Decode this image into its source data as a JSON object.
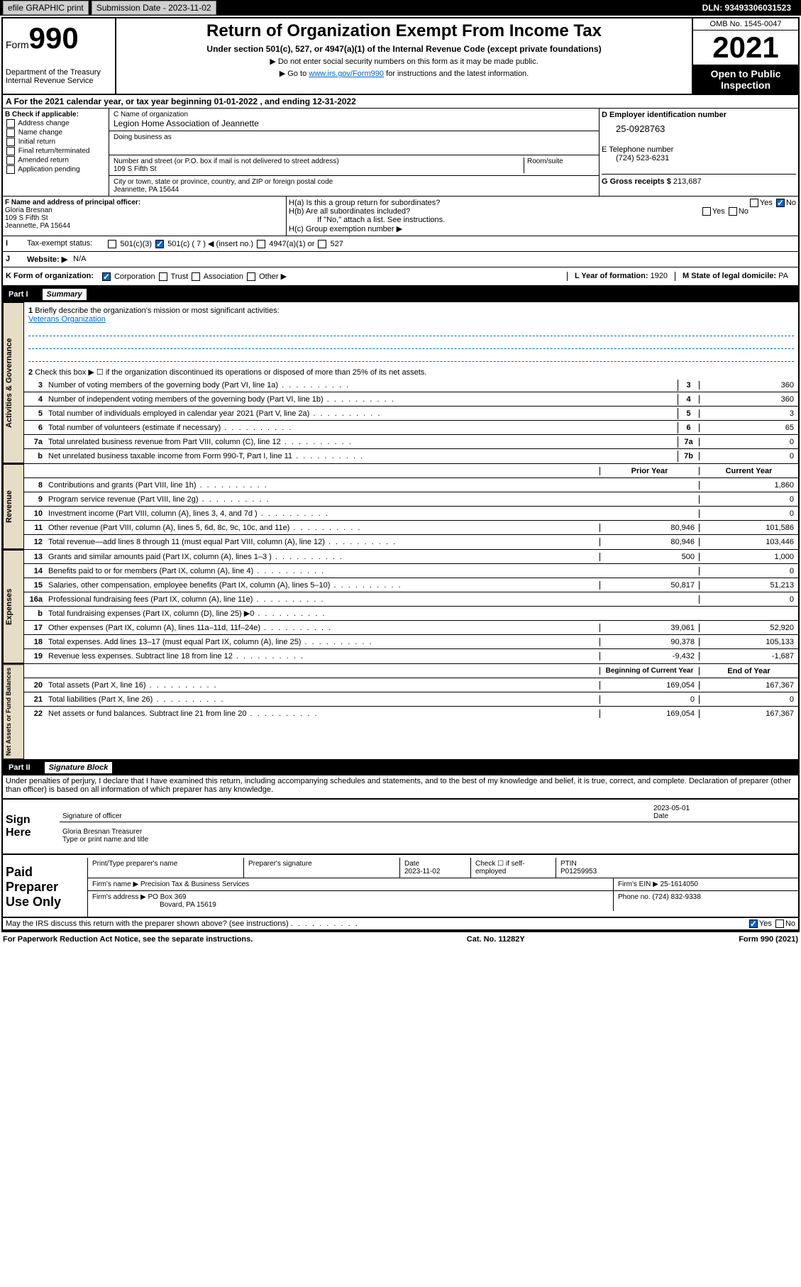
{
  "header": {
    "btn1": "efile GRAPHIC print",
    "btn2": "Submission Date - 2023-11-02",
    "dln": "DLN: 93493306031523"
  },
  "top": {
    "form_word": "Form",
    "form_num": "990",
    "dept": "Department of the Treasury",
    "irs": "Internal Revenue Service",
    "title": "Return of Organization Exempt From Income Tax",
    "subtitle": "Under section 501(c), 527, or 4947(a)(1) of the Internal Revenue Code (except private foundations)",
    "note1": "▶ Do not enter social security numbers on this form as it may be made public.",
    "note2_pre": "▶ Go to ",
    "note2_link": "www.irs.gov/Form990",
    "note2_post": " for instructions and the latest information.",
    "omb": "OMB No. 1545-0047",
    "year": "2021",
    "open": "Open to Public Inspection"
  },
  "period": "For the 2021 calendar year, or tax year beginning 01-01-2022  , and ending 12-31-2022",
  "boxB": {
    "label": "B Check if applicable:",
    "opts": [
      "Address change",
      "Name change",
      "Initial return",
      "Final return/terminated",
      "Amended return",
      "Application pending"
    ]
  },
  "boxC": {
    "name_label": "C Name of organization",
    "name": "Legion Home Association of Jeannette",
    "dba_label": "Doing business as",
    "addr_label": "Number and street (or P.O. box if mail is not delivered to street address)",
    "room_label": "Room/suite",
    "street": "109 S Fifth St",
    "city_label": "City or town, state or province, country, and ZIP or foreign postal code",
    "city": "Jeannette, PA  15644"
  },
  "boxD": {
    "label": "D Employer identification number",
    "ein": "25-0928763",
    "e_label": "E Telephone number",
    "phone": "(724) 523-6231",
    "g_label": "G Gross receipts $",
    "gross": "213,687"
  },
  "boxF": {
    "label": "F  Name and address of principal officer:",
    "name": "Gloria Bresnan",
    "street": "109 S Fifth St",
    "city": "Jeannette, PA  15644"
  },
  "boxH": {
    "a": "H(a)  Is this a group return for subordinates?",
    "b": "H(b)  Are all subordinates included?",
    "note": "If \"No,\" attach a list. See instructions.",
    "c": "H(c)  Group exemption number ▶"
  },
  "rowI": {
    "label": "Tax-exempt status:",
    "opts": [
      "501(c)(3)",
      "501(c) ( 7 ) ◀ (insert no.)",
      "4947(a)(1) or",
      "527"
    ]
  },
  "rowJ": {
    "label": "Website: ▶",
    "val": "N/A"
  },
  "rowK": {
    "label": "K Form of organization:",
    "opts": [
      "Corporation",
      "Trust",
      "Association",
      "Other ▶"
    ]
  },
  "rowL": {
    "label": "L Year of formation:",
    "val": "1920"
  },
  "rowM": {
    "label": "M State of legal domicile:",
    "val": "PA"
  },
  "part1": {
    "num": "Part I",
    "title": "Summary"
  },
  "gov": {
    "label": "Activities & Governance",
    "l1": "Briefly describe the organization's mission or most significant activities:",
    "l1_val": "Veterans Organization",
    "l2": "Check this box ▶ ☐  if the organization discontinued its operations or disposed of more than 25% of its net assets.",
    "lines": [
      {
        "n": "3",
        "d": "Number of voting members of the governing body (Part VI, line 1a)",
        "b": "3",
        "v": "360"
      },
      {
        "n": "4",
        "d": "Number of independent voting members of the governing body (Part VI, line 1b)",
        "b": "4",
        "v": "360"
      },
      {
        "n": "5",
        "d": "Total number of individuals employed in calendar year 2021 (Part V, line 2a)",
        "b": "5",
        "v": "3"
      },
      {
        "n": "6",
        "d": "Total number of volunteers (estimate if necessary)",
        "b": "6",
        "v": "65"
      },
      {
        "n": "7a",
        "d": "Total unrelated business revenue from Part VIII, column (C), line 12",
        "b": "7a",
        "v": "0"
      },
      {
        "n": "b",
        "d": "Net unrelated business taxable income from Form 990-T, Part I, line 11",
        "b": "7b",
        "v": "0"
      }
    ]
  },
  "rev": {
    "label": "Revenue",
    "h_prior": "Prior Year",
    "h_curr": "Current Year",
    "lines": [
      {
        "n": "8",
        "d": "Contributions and grants (Part VIII, line 1h)",
        "p": "",
        "c": "1,860"
      },
      {
        "n": "9",
        "d": "Program service revenue (Part VIII, line 2g)",
        "p": "",
        "c": "0"
      },
      {
        "n": "10",
        "d": "Investment income (Part VIII, column (A), lines 3, 4, and 7d )",
        "p": "",
        "c": "0"
      },
      {
        "n": "11",
        "d": "Other revenue (Part VIII, column (A), lines 5, 6d, 8c, 9c, 10c, and 11e)",
        "p": "80,946",
        "c": "101,586"
      },
      {
        "n": "12",
        "d": "Total revenue—add lines 8 through 11 (must equal Part VIII, column (A), line 12)",
        "p": "80,946",
        "c": "103,446"
      }
    ]
  },
  "exp": {
    "label": "Expenses",
    "lines": [
      {
        "n": "13",
        "d": "Grants and similar amounts paid (Part IX, column (A), lines 1–3 )",
        "p": "500",
        "c": "1,000"
      },
      {
        "n": "14",
        "d": "Benefits paid to or for members (Part IX, column (A), line 4)",
        "p": "",
        "c": "0"
      },
      {
        "n": "15",
        "d": "Salaries, other compensation, employee benefits (Part IX, column (A), lines 5–10)",
        "p": "50,817",
        "c": "51,213"
      },
      {
        "n": "16a",
        "d": "Professional fundraising fees (Part IX, column (A), line 11e)",
        "p": "",
        "c": "0"
      },
      {
        "n": "b",
        "d": "Total fundraising expenses (Part IX, column (D), line 25) ▶0",
        "p": "shaded",
        "c": "shaded"
      },
      {
        "n": "17",
        "d": "Other expenses (Part IX, column (A), lines 11a–11d, 11f–24e)",
        "p": "39,061",
        "c": "52,920"
      },
      {
        "n": "18",
        "d": "Total expenses. Add lines 13–17 (must equal Part IX, column (A), line 25)",
        "p": "90,378",
        "c": "105,133"
      },
      {
        "n": "19",
        "d": "Revenue less expenses. Subtract line 18 from line 12",
        "p": "-9,432",
        "c": "-1,687"
      }
    ]
  },
  "net": {
    "label": "Net Assets or Fund Balances",
    "h_begin": "Beginning of Current Year",
    "h_end": "End of Year",
    "lines": [
      {
        "n": "20",
        "d": "Total assets (Part X, line 16)",
        "p": "169,054",
        "c": "167,367"
      },
      {
        "n": "21",
        "d": "Total liabilities (Part X, line 26)",
        "p": "0",
        "c": "0"
      },
      {
        "n": "22",
        "d": "Net assets or fund balances. Subtract line 21 from line 20",
        "p": "169,054",
        "c": "167,367"
      }
    ]
  },
  "part2": {
    "num": "Part II",
    "title": "Signature Block"
  },
  "penalty": "Under penalties of perjury, I declare that I have examined this return, including accompanying schedules and statements, and to the best of my knowledge and belief, it is true, correct, and complete. Declaration of preparer (other than officer) is based on all information of which preparer has any knowledge.",
  "sign": {
    "label": "Sign Here",
    "sig_label": "Signature of officer",
    "date_label": "Date",
    "date": "2023-05-01",
    "name": "Gloria Bresnan  Treasurer",
    "name_label": "Type or print name and title"
  },
  "paid": {
    "label": "Paid Preparer Use Only",
    "h1": "Print/Type preparer's name",
    "h2": "Preparer's signature",
    "h3": "Date",
    "date": "2023-11-02",
    "h4": "Check ☐ if self-employed",
    "h5": "PTIN",
    "ptin": "P01259953",
    "firm_label": "Firm's name    ▶",
    "firm": "Precision Tax & Business Services",
    "ein_label": "Firm's EIN ▶",
    "ein": "25-1614050",
    "addr_label": "Firm's address ▶",
    "addr1": "PO Box 369",
    "addr2": "Bovard, PA  15619",
    "phone_label": "Phone no.",
    "phone": "(724) 832-9338"
  },
  "discuss": "May the IRS discuss this return with the preparer shown above? (see instructions)",
  "footer": {
    "l": "For Paperwork Reduction Act Notice, see the separate instructions.",
    "c": "Cat. No. 11282Y",
    "r": "Form 990 (2021)"
  }
}
